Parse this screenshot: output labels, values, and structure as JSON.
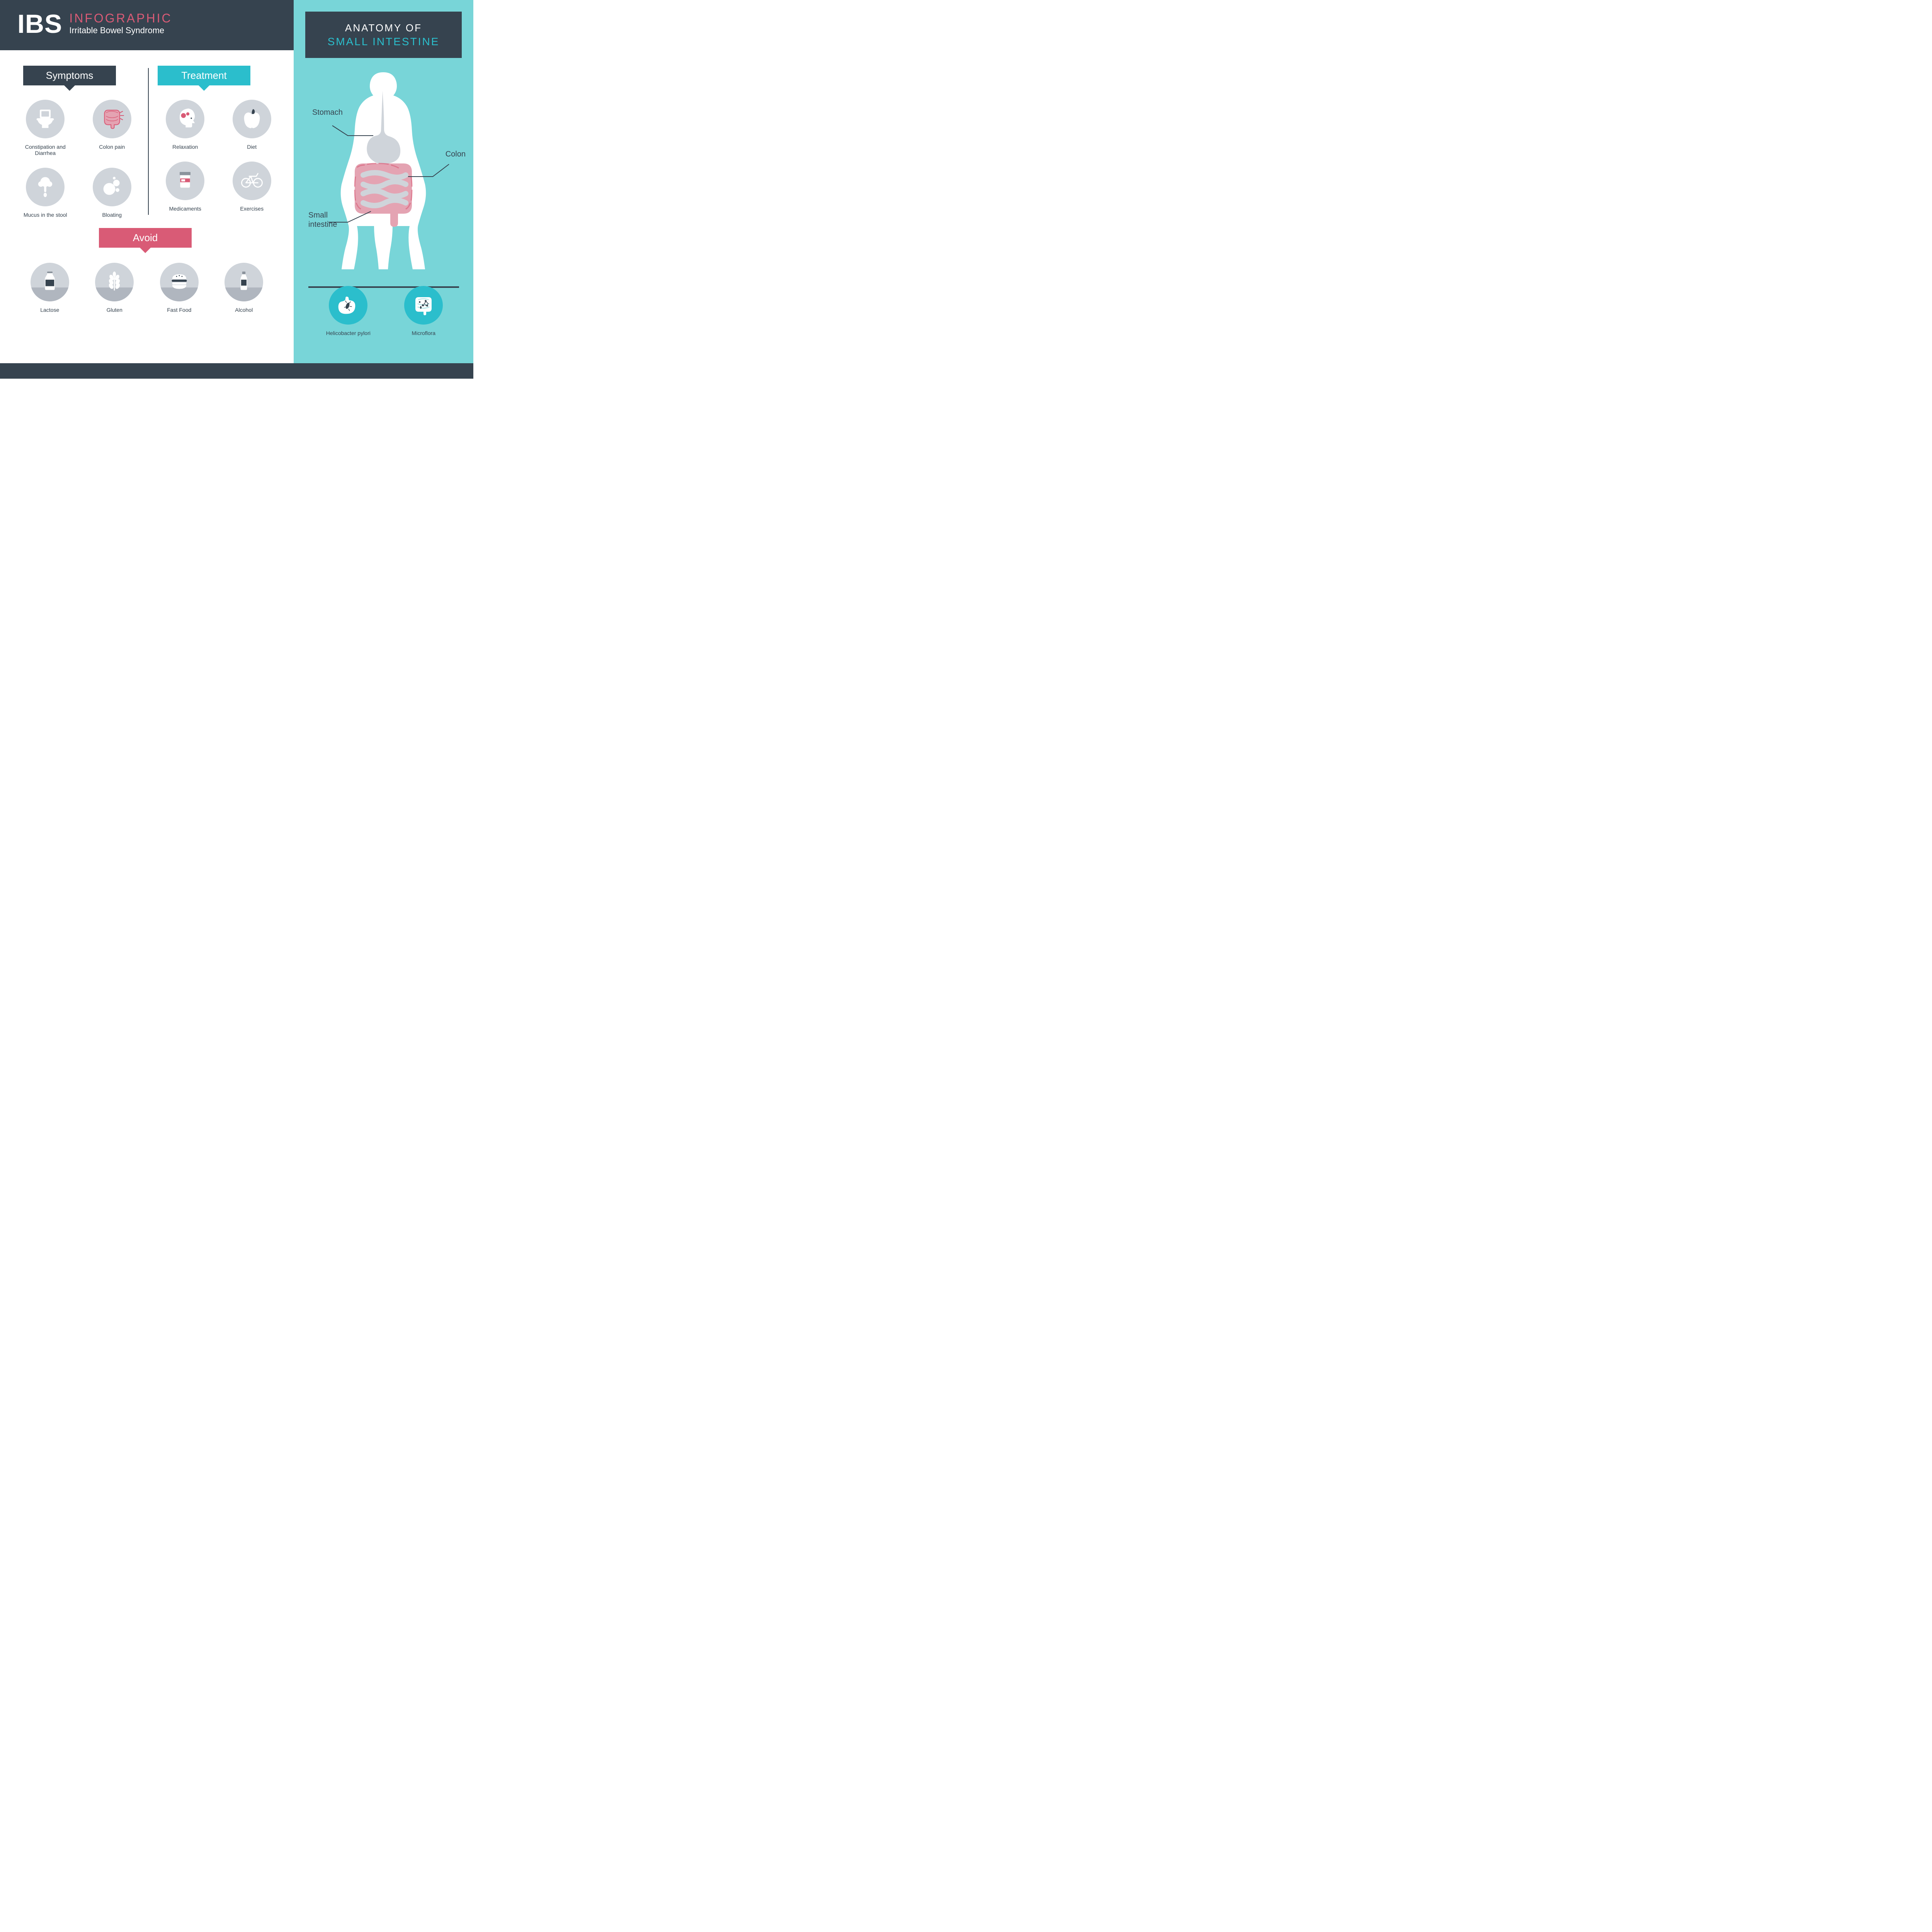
{
  "colors": {
    "dark": "#36434f",
    "cyan": "#2bbecc",
    "cyan_light": "#78d5d8",
    "pink": "#d95b76",
    "pink_light": "#e4a3b2",
    "white": "#ffffff",
    "grey_icon_bg": "#cfd4da",
    "grey_floor": "#b0b6bf",
    "grey_mid": "#8b939c",
    "text_dark": "#36434f"
  },
  "header": {
    "abbr": "IBS",
    "title": "INFOGRAPHIC",
    "subtitle": "Irritable Bowel Syndrome"
  },
  "anatomy": {
    "line1": "ANATOMY OF",
    "line2": "SMALL INTESTINE",
    "labels": {
      "stomach": "Stomach",
      "colon": "Colon",
      "small_intestine": "Small intestine"
    },
    "bottom_items": [
      {
        "label": "Helicobacter pylori",
        "icon": "stomach-bacteria"
      },
      {
        "label": "Microflora",
        "icon": "intestine-bacteria"
      }
    ]
  },
  "sections": {
    "symptoms": {
      "title": "Symptoms",
      "items": [
        {
          "label": "Constipation and Diarrhea",
          "icon": "toilet"
        },
        {
          "label": "Colon pain",
          "icon": "colon"
        },
        {
          "label": "Mucus in the stool",
          "icon": "mucus"
        },
        {
          "label": "Bloating",
          "icon": "bubbles"
        }
      ]
    },
    "treatment": {
      "title": "Treatment",
      "items": [
        {
          "label": "Relaxation",
          "icon": "head-gears"
        },
        {
          "label": "Diet",
          "icon": "apple"
        },
        {
          "label": "Medicaments",
          "icon": "pills"
        },
        {
          "label": "Exercises",
          "icon": "bicycle"
        }
      ]
    },
    "avoid": {
      "title": "Avoid",
      "items": [
        {
          "label": "Lactose",
          "icon": "milk"
        },
        {
          "label": "Gluten",
          "icon": "wheat"
        },
        {
          "label": "Fast Food",
          "icon": "burger"
        },
        {
          "label": "Alcohol",
          "icon": "bottle"
        }
      ]
    }
  }
}
